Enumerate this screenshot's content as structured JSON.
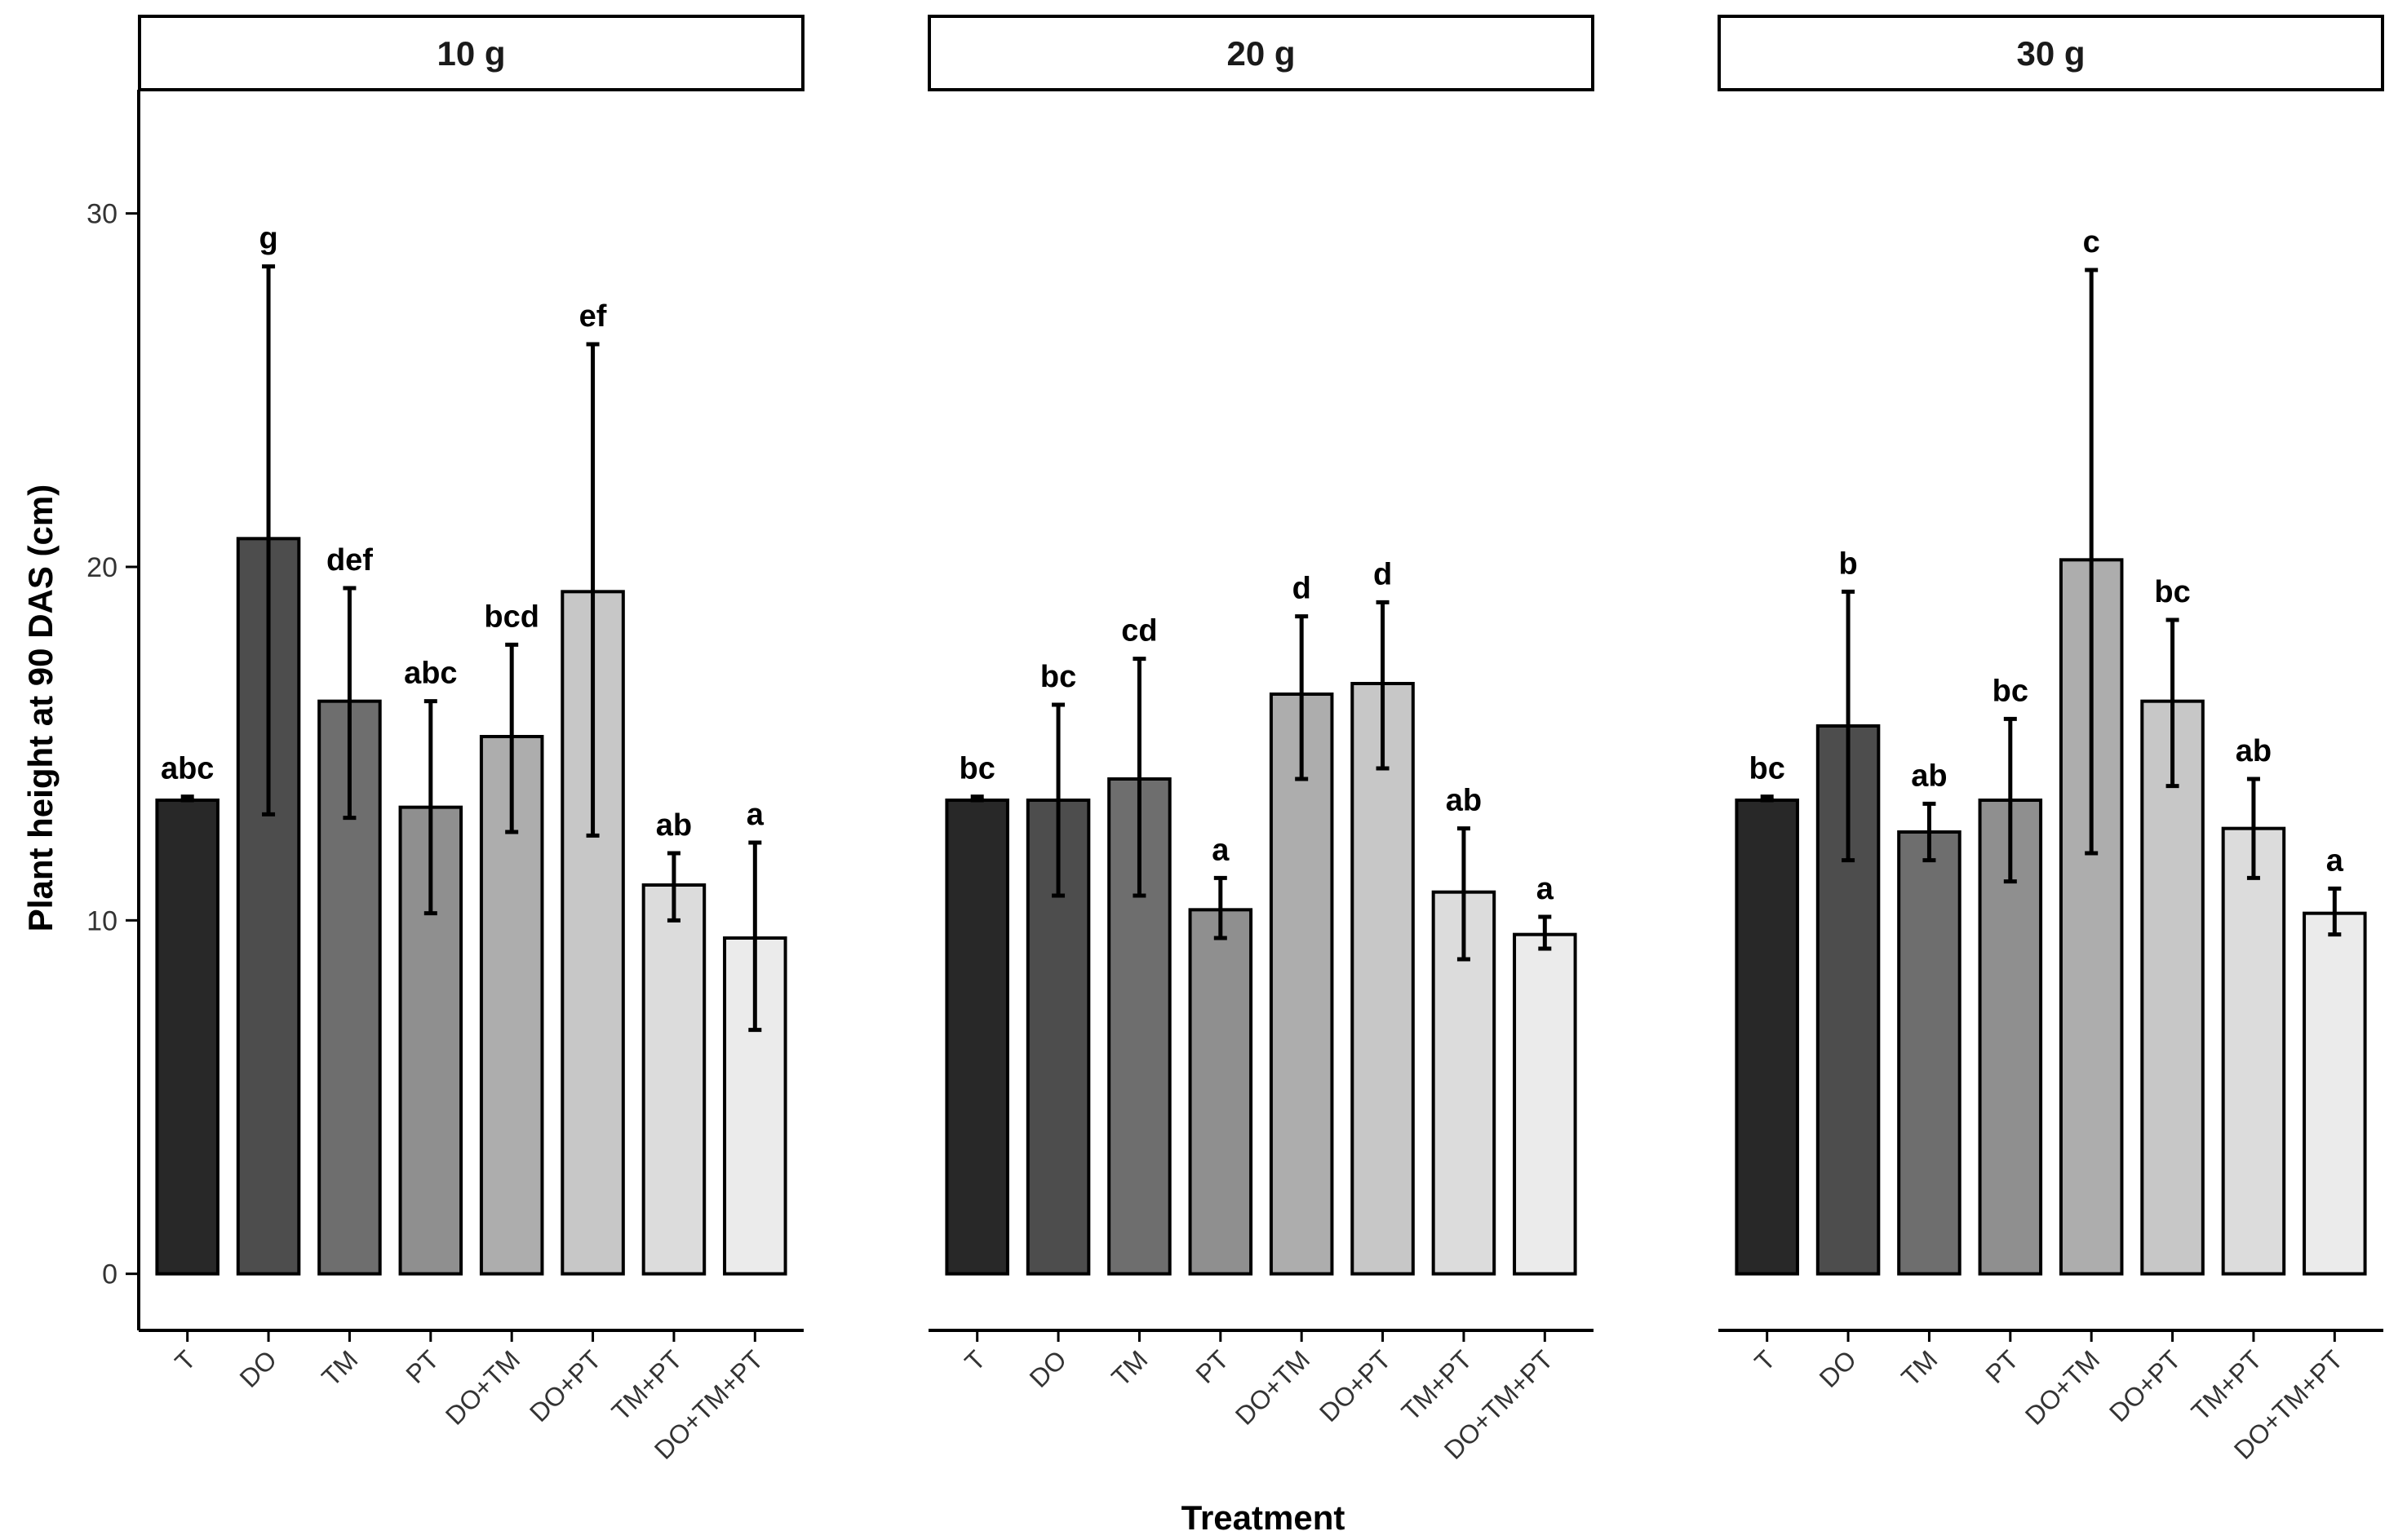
{
  "chart_data": {
    "type": "bar",
    "facet_variable": "dose",
    "panels": [
      {
        "title": "10 g",
        "categories": [
          "T",
          "DO",
          "TM",
          "PT",
          "DO+TM",
          "DO+PT",
          "TM+PT",
          "DO+TM+PT"
        ],
        "values": [
          13.4,
          20.8,
          16.2,
          13.2,
          15.2,
          19.3,
          11.0,
          9.5
        ],
        "error_low": [
          13.4,
          13.0,
          12.9,
          10.2,
          12.5,
          12.4,
          10.0,
          6.9
        ],
        "error_high": [
          13.5,
          28.5,
          19.4,
          16.2,
          17.8,
          26.3,
          11.9,
          12.2
        ],
        "significance_letters": [
          "abc",
          "g",
          "def",
          "abc",
          "bcd",
          "ef",
          "ab",
          "a"
        ]
      },
      {
        "title": "20 g",
        "categories": [
          "T",
          "DO",
          "TM",
          "PT",
          "DO+TM",
          "DO+PT",
          "TM+PT",
          "DO+TM+PT"
        ],
        "values": [
          13.4,
          13.4,
          14.0,
          10.3,
          16.4,
          16.7,
          10.8,
          9.6
        ],
        "error_low": [
          13.4,
          10.7,
          10.7,
          9.5,
          14.0,
          14.3,
          8.9,
          9.2
        ],
        "error_high": [
          13.5,
          16.1,
          17.4,
          11.2,
          18.6,
          19.0,
          12.6,
          10.1
        ],
        "significance_letters": [
          "bc",
          "bc",
          "cd",
          "a",
          "d",
          "d",
          "ab",
          "a"
        ]
      },
      {
        "title": "30 g",
        "categories": [
          "T",
          "DO",
          "TM",
          "PT",
          "DO+TM",
          "DO+PT",
          "TM+PT",
          "DO+TM+PT"
        ],
        "values": [
          13.4,
          15.5,
          12.5,
          13.4,
          20.2,
          16.2,
          12.6,
          10.2
        ],
        "error_low": [
          13.4,
          11.7,
          11.7,
          11.1,
          11.9,
          13.8,
          11.2,
          9.6
        ],
        "error_high": [
          13.5,
          19.3,
          13.3,
          15.7,
          28.4,
          18.5,
          14.0,
          10.9
        ],
        "significance_letters": [
          "bc",
          "b",
          "ab",
          "bc",
          "c",
          "bc",
          "ab",
          "a"
        ]
      }
    ],
    "xlabel": "Treatment",
    "ylabel": "Plant height at 90 DAS (cm)",
    "ylim": [
      -1.6,
      33.5
    ],
    "yticks": [
      0,
      10,
      20,
      30
    ],
    "grid": false,
    "legend": "none",
    "bar_colors": [
      "#282828",
      "#4d4d4d",
      "#6e6e6e",
      "#8f8f8f",
      "#adadad",
      "#c7c7c7",
      "#dcdcdc",
      "#ebebeb"
    ],
    "bar_outline": "#000000"
  }
}
